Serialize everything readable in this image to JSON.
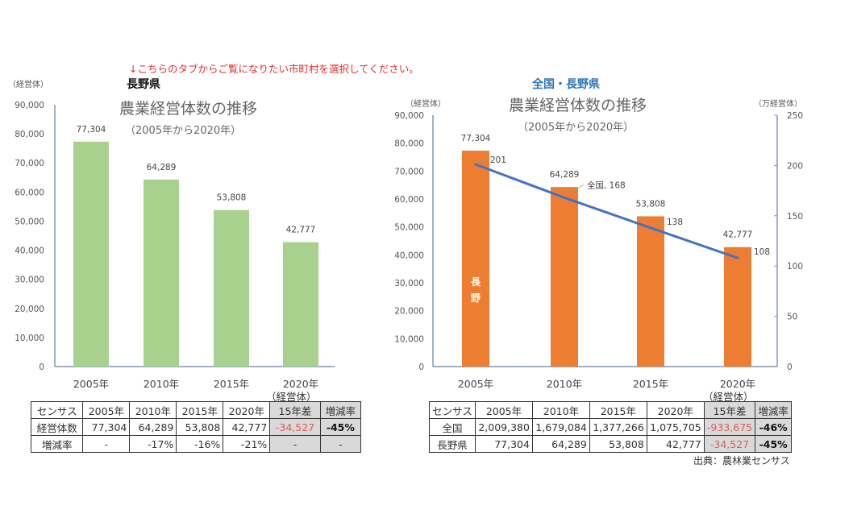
{
  "note": "↓こちらのタブからご覧になりたい市町村を選択してください。",
  "source": "出典：農林業センサス",
  "colors": {
    "green_bar": "#a9d18e",
    "orange_bar": "#ed7d31",
    "line": "#4472c4",
    "axis": "#8497b0",
    "note": "#e03030",
    "header_blue": "#2e75b6",
    "negative": "#e05a5a"
  },
  "chart_data": [
    {
      "type": "bar",
      "region_label": "長野県",
      "title": "農業経営体数の推移",
      "subtitle": "（2005年から2020年）",
      "ylabel": "（経営体）",
      "xunit": "（経営体）",
      "categories": [
        "2005年",
        "2010年",
        "2015年",
        "2020年"
      ],
      "values": [
        77304,
        64289,
        53808,
        42777
      ],
      "data_labels": [
        "77,304",
        "64,289",
        "53,808",
        "42,777"
      ],
      "ylim": [
        0,
        90000
      ],
      "yticks": [
        "0",
        "10,000",
        "20,000",
        "30,000",
        "40,000",
        "50,000",
        "60,000",
        "70,000",
        "80,000",
        "90,000"
      ],
      "grid": false
    },
    {
      "type": "bar+line",
      "region_label": "全国・長野県",
      "title": "農業経営体数の推移",
      "subtitle": "（2005年から2020年）",
      "ylabel": "（経営体）",
      "y2label": "（万経営体）",
      "xunit": "（経営体）",
      "categories": [
        "2005年",
        "2010年",
        "2015年",
        "2020年"
      ],
      "series": [
        {
          "name": "長野",
          "type": "bar",
          "axis": "left",
          "values": [
            77304,
            64289,
            53808,
            42777
          ],
          "data_labels": [
            "77,304",
            "64,289",
            "53,808",
            "42,777"
          ]
        },
        {
          "name": "全国",
          "type": "line",
          "axis": "right",
          "values": [
            201,
            168,
            138,
            108
          ],
          "data_labels": [
            "201",
            "全国, 168",
            "138",
            "108"
          ]
        }
      ],
      "ylim": [
        0,
        90000
      ],
      "y2lim": [
        0,
        250
      ],
      "yticks": [
        "0",
        "10,000",
        "20,000",
        "30,000",
        "40,000",
        "50,000",
        "60,000",
        "70,000",
        "80,000",
        "90,000"
      ],
      "y2ticks": [
        "0",
        "50",
        "100",
        "150",
        "200",
        "250"
      ],
      "grid": false
    }
  ],
  "table_left": {
    "header": [
      "センサス",
      "2005年",
      "2010年",
      "2015年",
      "2020年",
      "15年差",
      "増減率"
    ],
    "rows": [
      [
        "経営体数",
        "77,304",
        "64,289",
        "53,808",
        "42,777",
        "-34,527",
        "-45%"
      ],
      [
        "増減率",
        "-",
        "-17%",
        "-16%",
        "-21%",
        "-",
        "-"
      ]
    ]
  },
  "table_right": {
    "header": [
      "センサス",
      "2005年",
      "2010年",
      "2015年",
      "2020年",
      "15年差",
      "増減率"
    ],
    "rows": [
      [
        "全国",
        "2,009,380",
        "1,679,084",
        "1,377,266",
        "1,075,705",
        "-933,675",
        "-46%"
      ],
      [
        "長野県",
        "77,304",
        "64,289",
        "53,808",
        "42,777",
        "-34,527",
        "-45%"
      ]
    ]
  }
}
